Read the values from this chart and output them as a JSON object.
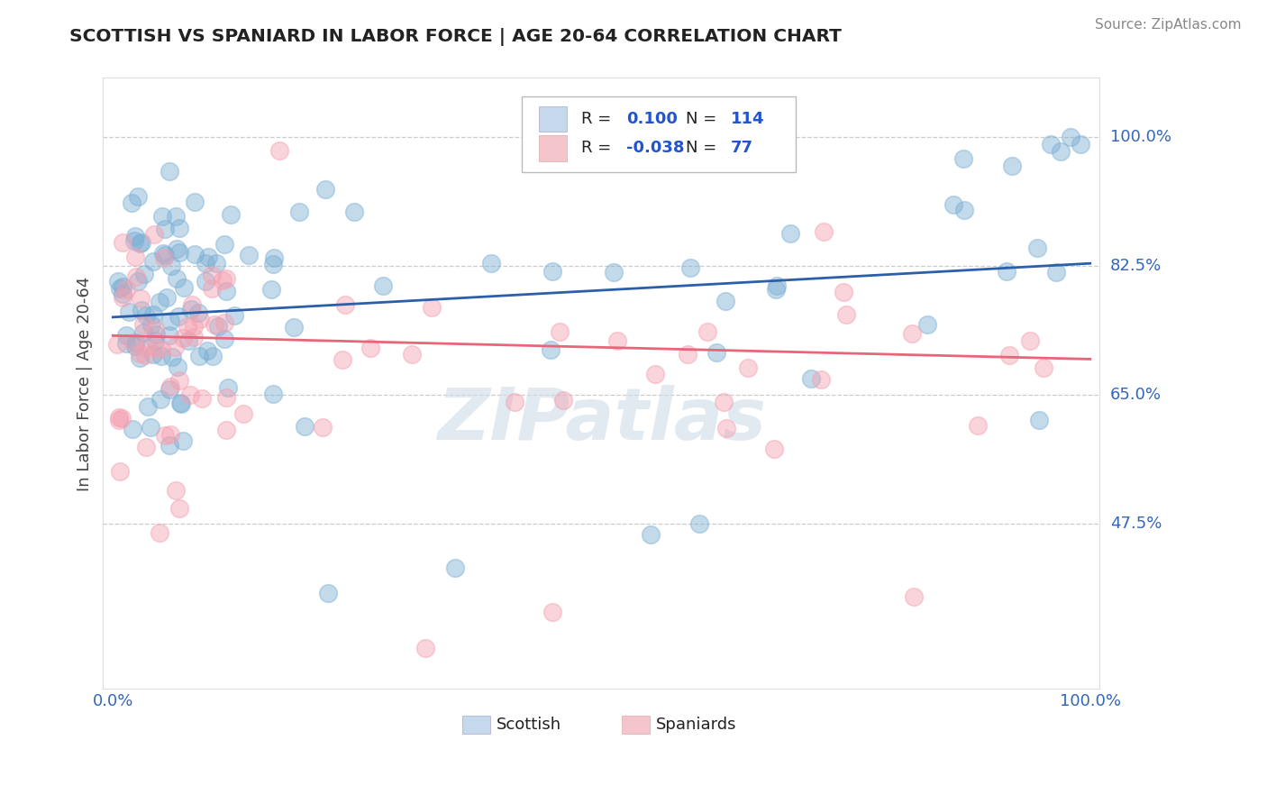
{
  "title": "SCOTTISH VS SPANIARD IN LABOR FORCE | AGE 20-64 CORRELATION CHART",
  "source": "Source: ZipAtlas.com",
  "ylabel": "In Labor Force | Age 20-64",
  "xlim": [
    -0.01,
    1.01
  ],
  "ylim": [
    0.25,
    1.08
  ],
  "yticks": [
    0.475,
    0.65,
    0.825,
    1.0
  ],
  "ytick_labels": [
    "47.5%",
    "65.0%",
    "82.5%",
    "100.0%"
  ],
  "xtick_labels": [
    "0.0%",
    "100.0%"
  ],
  "xticks": [
    0.0,
    1.0
  ],
  "grid_color": "#cccccc",
  "bg_color": "#ffffff",
  "blue_color": "#7bafd4",
  "pink_color": "#f4a0b0",
  "blue_line_color": "#2c5faa",
  "pink_line_color": "#e8657a",
  "legend_R_blue": "0.100",
  "legend_N_blue": "114",
  "legend_R_pink": "-0.038",
  "legend_N_pink": "77",
  "blue_trend_start": 0.755,
  "blue_trend_end": 0.828,
  "pink_trend_start": 0.73,
  "pink_trend_end": 0.698,
  "watermark_text": "ZIPatlas",
  "tick_label_color": "#3366BB",
  "title_color": "#222222",
  "source_color": "#888888",
  "ylabel_color": "#444444"
}
